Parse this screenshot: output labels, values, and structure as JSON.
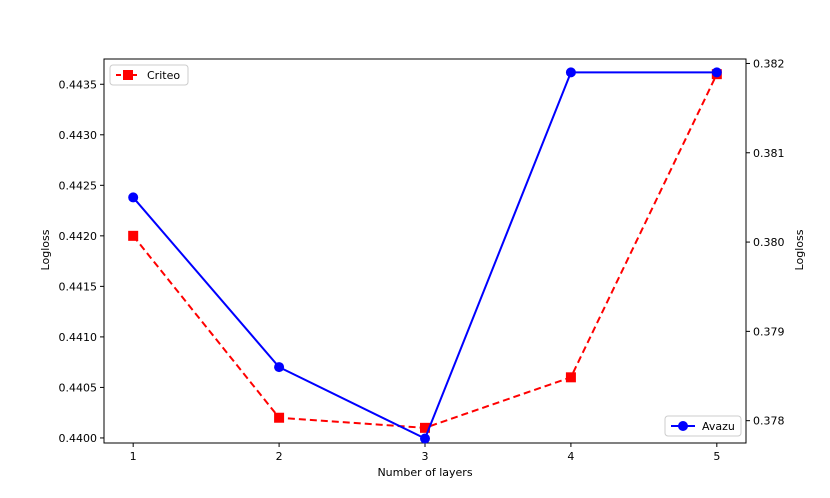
{
  "chart_data": {
    "type": "line",
    "xlabel": "Number of layers",
    "x_ticks": [
      "1",
      "2",
      "3",
      "4",
      "5"
    ],
    "x": [
      1,
      2,
      3,
      4,
      5
    ],
    "xlim": [
      0.8,
      5.2
    ],
    "y_left": {
      "label": "Logloss",
      "ylim": [
        0.43995,
        0.44375
      ],
      "ticks": [
        0.44,
        0.4405,
        0.441,
        0.4415,
        0.442,
        0.4425,
        0.443,
        0.4435
      ],
      "tick_labels": [
        "0.4400",
        "0.4405",
        "0.4410",
        "0.4415",
        "0.4420",
        "0.4425",
        "0.4430",
        "0.4435"
      ]
    },
    "y_right": {
      "label": "Logloss",
      "ylim": [
        0.37775,
        0.38205
      ],
      "ticks": [
        0.378,
        0.379,
        0.38,
        0.381,
        0.382
      ],
      "tick_labels": [
        "0.378",
        "0.379",
        "0.380",
        "0.381",
        "0.382"
      ]
    },
    "series": [
      {
        "name": "Criteo",
        "axis": "left",
        "values": [
          0.442,
          0.4402,
          0.4401,
          0.4406,
          0.4436
        ],
        "color": "#ff0000",
        "marker": "square",
        "linestyle": "dashed"
      },
      {
        "name": "Avazu",
        "axis": "right",
        "values": [
          0.3805,
          0.3786,
          0.3778,
          0.3819,
          0.3819
        ],
        "color": "#0000ff",
        "marker": "circle",
        "linestyle": "solid"
      }
    ],
    "legends": [
      {
        "series": "Criteo",
        "placement": "upper-left"
      },
      {
        "series": "Avazu",
        "placement": "lower-right"
      }
    ],
    "grid": false
  }
}
